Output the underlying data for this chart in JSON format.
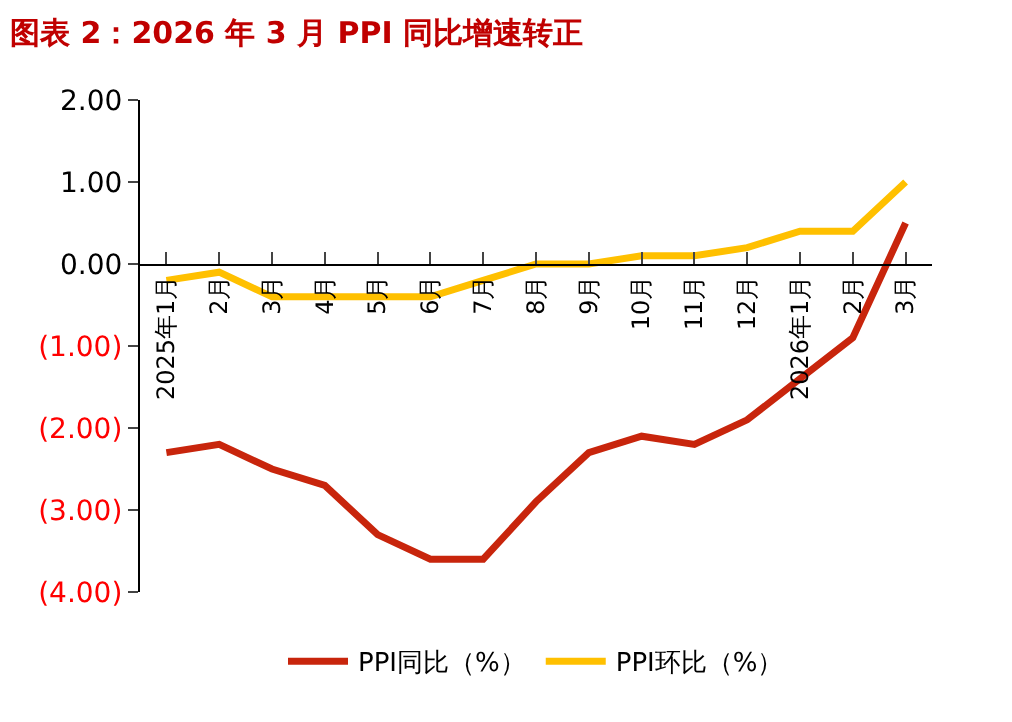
{
  "chart_data": {
    "type": "line",
    "title": "图表 2：2026 年 3 月 PPI 同比增速转正",
    "categories": [
      "2025年1月",
      "2月",
      "3月",
      "4月",
      "5月",
      "6月",
      "7月",
      "8月",
      "9月",
      "10月",
      "11月",
      "12月",
      "2026年1月",
      "2月",
      "3月"
    ],
    "series": [
      {
        "name": "PPI同比（%）",
        "color": "#c8250c",
        "values": [
          -2.3,
          -2.2,
          -2.5,
          -2.7,
          -3.3,
          -3.6,
          -3.6,
          -2.9,
          -2.3,
          -2.1,
          -2.2,
          -1.9,
          -1.4,
          -0.9,
          0.5
        ]
      },
      {
        "name": "PPI环比（%）",
        "color": "#ffc000",
        "values": [
          -0.2,
          -0.1,
          -0.4,
          -0.4,
          -0.4,
          -0.4,
          -0.2,
          0.0,
          0.0,
          0.1,
          0.1,
          0.2,
          0.4,
          0.4,
          1.0
        ]
      }
    ],
    "ylim": [
      -4,
      2
    ],
    "yticks": [
      {
        "value": 2,
        "label": "2.00"
      },
      {
        "value": 1,
        "label": "1.00"
      },
      {
        "value": 0,
        "label": "0.00"
      },
      {
        "value": -1,
        "label": "(1.00)"
      },
      {
        "value": -2,
        "label": "(2.00)"
      },
      {
        "value": -3,
        "label": "(3.00)"
      },
      {
        "value": -4,
        "label": "(4.00)"
      }
    ],
    "legend": "bottom",
    "marker": "none",
    "line_style": "solid"
  }
}
